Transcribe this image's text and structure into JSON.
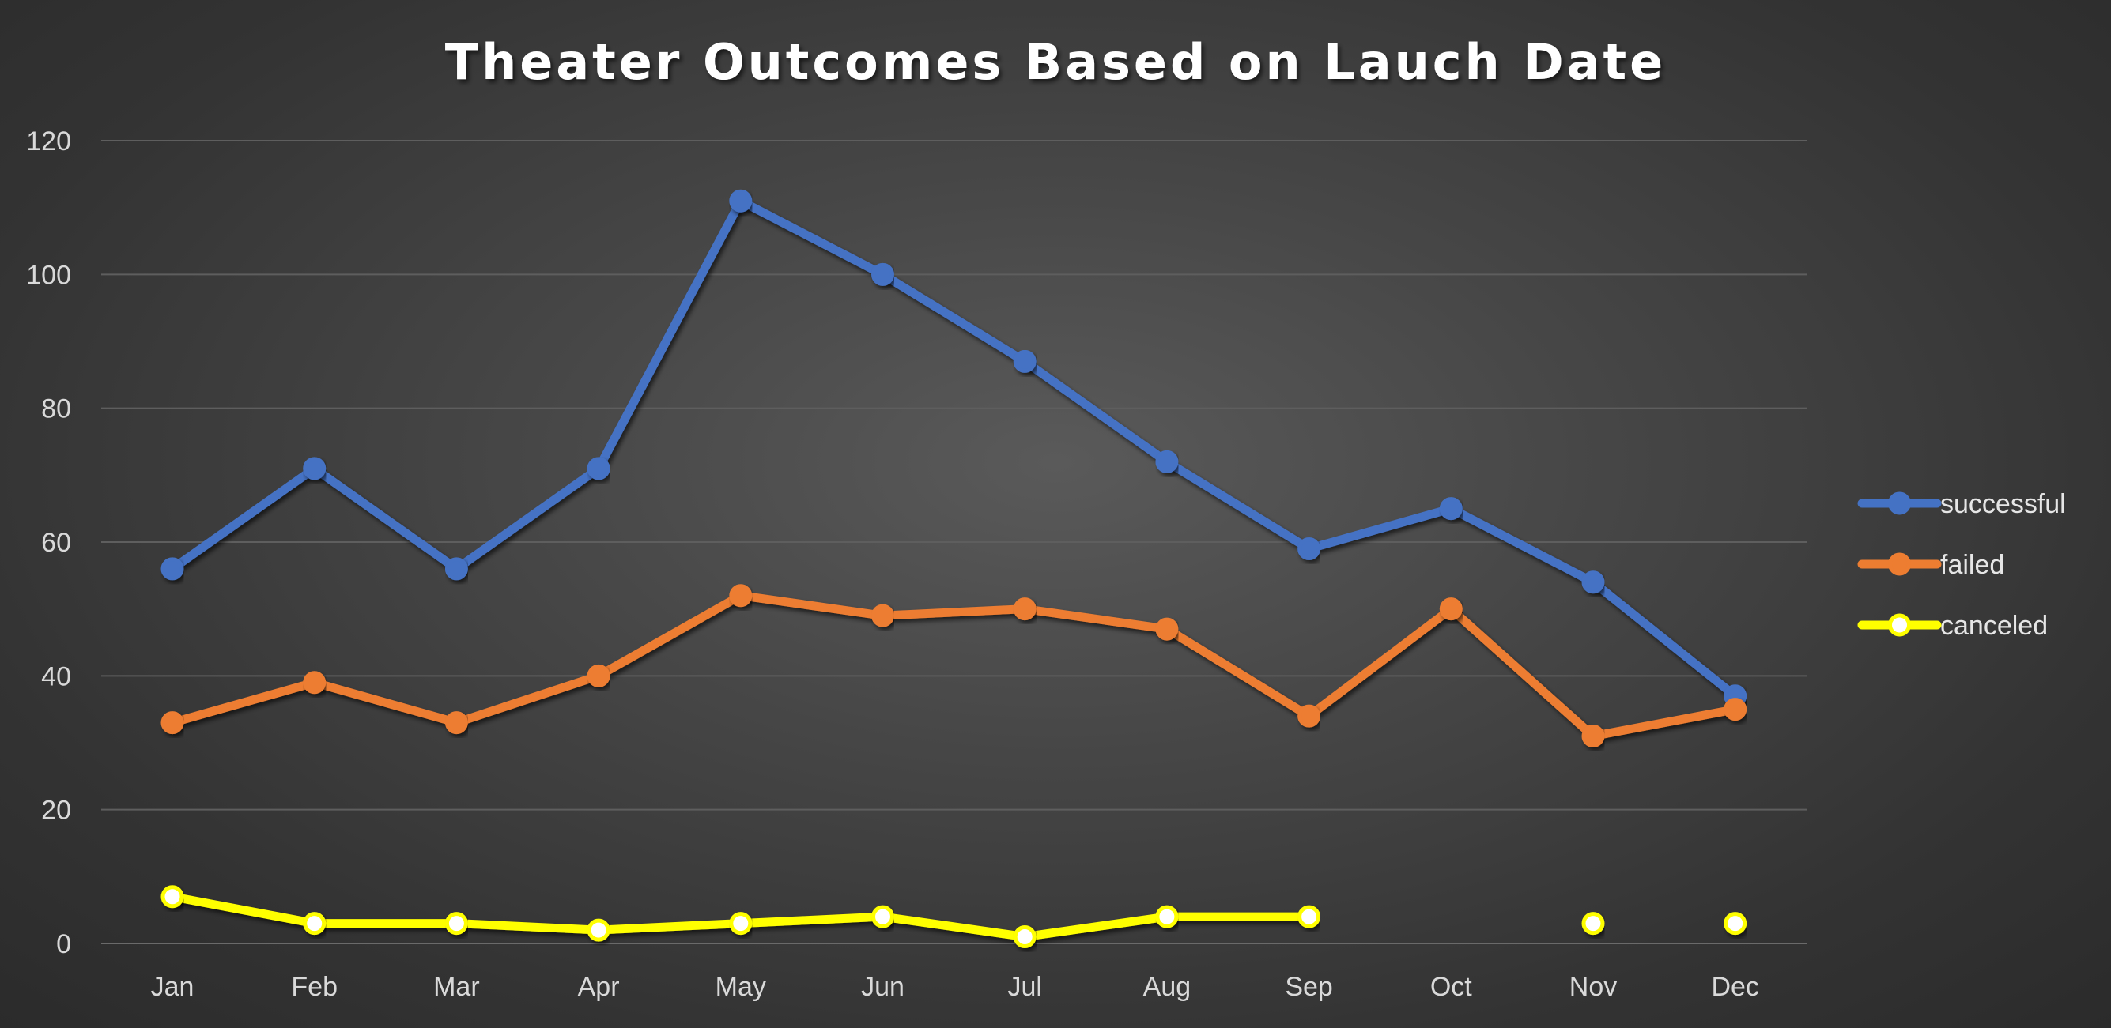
{
  "chart_data": {
    "type": "line",
    "title": "Theater Outcomes Based on Lauch Date",
    "categories": [
      "Jan",
      "Feb",
      "Mar",
      "Apr",
      "May",
      "Jun",
      "Jul",
      "Aug",
      "Sep",
      "Oct",
      "Nov",
      "Dec"
    ],
    "y_ticks": [
      "0",
      "20",
      "40",
      "60",
      "80",
      "100",
      "120"
    ],
    "ylim": [
      0,
      120
    ],
    "grid": true,
    "legend_position": "right",
    "series": [
      {
        "name": "successful",
        "color": "#4472c4",
        "marker_fill": "#4472c4",
        "values": [
          56,
          71,
          56,
          71,
          111,
          100,
          87,
          72,
          59,
          65,
          54,
          37
        ]
      },
      {
        "name": "failed",
        "color": "#ed7d31",
        "marker_fill": "#ed7d31",
        "values": [
          33,
          39,
          33,
          40,
          52,
          49,
          50,
          47,
          34,
          50,
          31,
          35
        ]
      },
      {
        "name": "canceled",
        "color": "#ffff00",
        "marker_fill": "#ffffff",
        "values": [
          7,
          3,
          3,
          2,
          3,
          4,
          1,
          4,
          4,
          null,
          3,
          3
        ]
      }
    ]
  }
}
